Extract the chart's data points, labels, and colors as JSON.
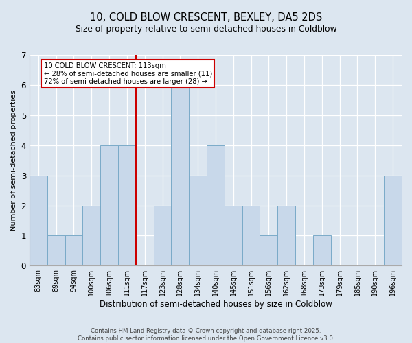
{
  "title_line1": "10, COLD BLOW CRESCENT, BEXLEY, DA5 2DS",
  "title_line2": "Size of property relative to semi-detached houses in Coldblow",
  "xlabel": "Distribution of semi-detached houses by size in Coldblow",
  "ylabel": "Number of semi-detached properties",
  "categories": [
    "83sqm",
    "89sqm",
    "94sqm",
    "100sqm",
    "106sqm",
    "111sqm",
    "117sqm",
    "123sqm",
    "128sqm",
    "134sqm",
    "140sqm",
    "145sqm",
    "151sqm",
    "156sqm",
    "162sqm",
    "168sqm",
    "173sqm",
    "179sqm",
    "185sqm",
    "190sqm",
    "196sqm"
  ],
  "values": [
    3,
    1,
    1,
    2,
    4,
    4,
    0,
    2,
    6,
    3,
    4,
    2,
    2,
    1,
    2,
    0,
    1,
    0,
    0,
    0,
    3
  ],
  "bar_color": "#c8d8ea",
  "bar_edge_color": "#7aaac8",
  "red_line_x": 5.5,
  "annotation_text": "10 COLD BLOW CRESCENT: 113sqm\n← 28% of semi-detached houses are smaller (11)\n72% of semi-detached houses are larger (28) →",
  "annotation_box_color": "#ffffff",
  "annotation_box_edge": "#cc0000",
  "red_line_color": "#cc0000",
  "ylim": [
    0,
    7
  ],
  "yticks": [
    0,
    1,
    2,
    3,
    4,
    5,
    6,
    7
  ],
  "footer": "Contains HM Land Registry data © Crown copyright and database right 2025.\nContains public sector information licensed under the Open Government Licence v3.0.",
  "fig_background_color": "#dce6f0",
  "plot_background_color": "#dce6f0"
}
